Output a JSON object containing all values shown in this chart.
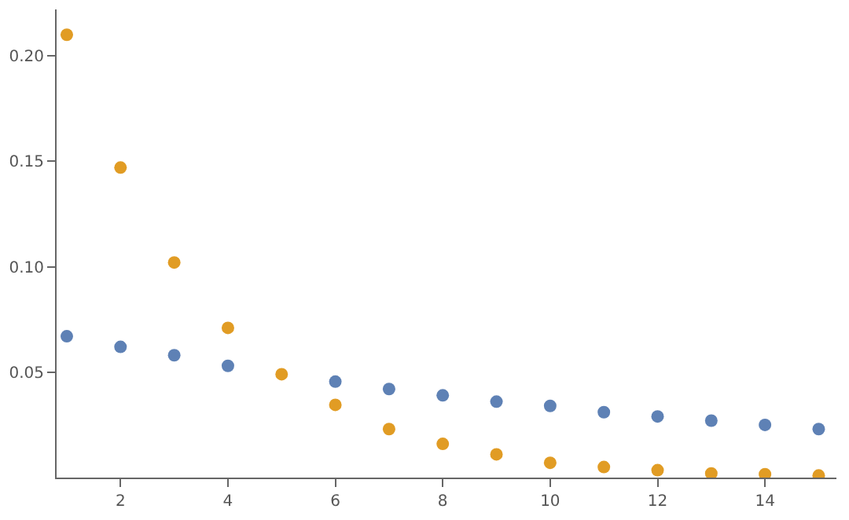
{
  "chart_data": {
    "type": "scatter",
    "x": [
      1,
      2,
      3,
      4,
      5,
      6,
      7,
      8,
      9,
      10,
      11,
      12,
      13,
      14,
      15
    ],
    "series": [
      {
        "color": "#5e81b5",
        "values": [
          0.067,
          0.062,
          0.058,
          0.053,
          null,
          0.0455,
          0.042,
          0.039,
          0.036,
          0.034,
          0.031,
          0.029,
          0.027,
          0.025,
          0.023
        ]
      },
      {
        "color": "#e19c24",
        "values": [
          0.21,
          0.147,
          0.102,
          0.071,
          0.049,
          0.0345,
          0.023,
          0.016,
          0.011,
          0.007,
          0.005,
          0.0035,
          0.002,
          0.0016,
          0.001
        ]
      }
    ],
    "xlim": [
      0.81,
      15.33
    ],
    "ylim": [
      0,
      0.222
    ],
    "xticks": [
      2,
      4,
      6,
      8,
      10,
      12,
      14
    ],
    "yticks": [
      {
        "value": 0.05,
        "label": "0.05"
      },
      {
        "value": 0.1,
        "label": "0.10"
      },
      {
        "value": 0.15,
        "label": "0.15"
      },
      {
        "value": 0.2,
        "label": "0.20"
      }
    ],
    "marker": "circle"
  }
}
